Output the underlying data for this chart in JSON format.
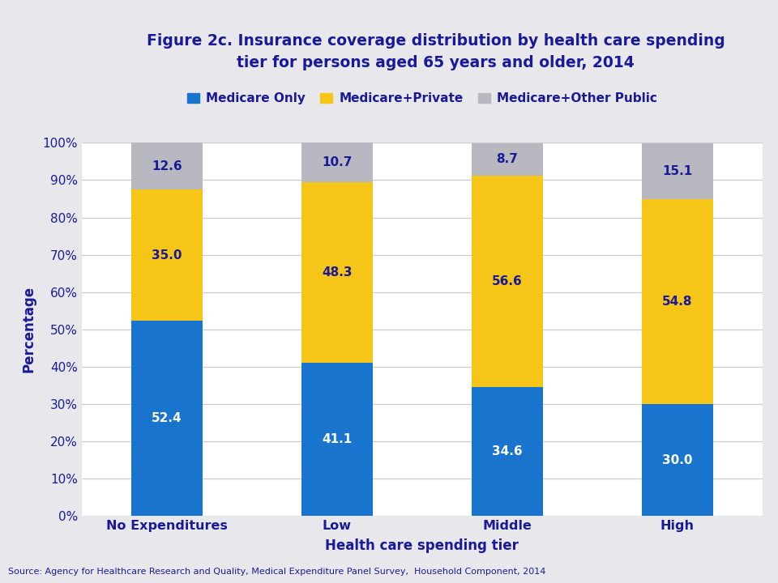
{
  "categories": [
    "No Expenditures",
    "Low",
    "Middle",
    "High"
  ],
  "medicare_only": [
    52.4,
    41.1,
    34.6,
    30.0
  ],
  "medicare_private": [
    35.0,
    48.3,
    56.6,
    54.8
  ],
  "medicare_other": [
    12.6,
    10.7,
    8.7,
    15.1
  ],
  "colors": {
    "medicare_only": "#1874CD",
    "medicare_private": "#F5C518",
    "medicare_other": "#B8B8C0"
  },
  "legend_labels": [
    "Medicare Only",
    "Medicare+Private",
    "Medicare+Other Public"
  ],
  "title_line1": "Figure 2c. Insurance coverage distribution by health care spending",
  "title_line2": "tier for persons aged 65 years and older, 2014",
  "xlabel": "Health care spending tier",
  "ylabel": "Percentage",
  "source": "Source: Agency for Healthcare Research and Quality, Medical Expenditure Panel Survey,  Household Component, 2014",
  "title_color": "#1a1a99",
  "label_color": "#1a1a99",
  "tick_color": "#1a1a99",
  "bar_label_color_blue": "#ffffff",
  "bar_label_color_yellow": "#1a1a99",
  "bar_label_color_gray": "#1a1a99",
  "ylim": [
    0,
    100
  ],
  "yticks": [
    0,
    10,
    20,
    30,
    40,
    50,
    60,
    70,
    80,
    90,
    100
  ],
  "header_bg": "#d0d2d8",
  "chart_bg": "#ffffff",
  "fig_bg": "#e8e8ec"
}
